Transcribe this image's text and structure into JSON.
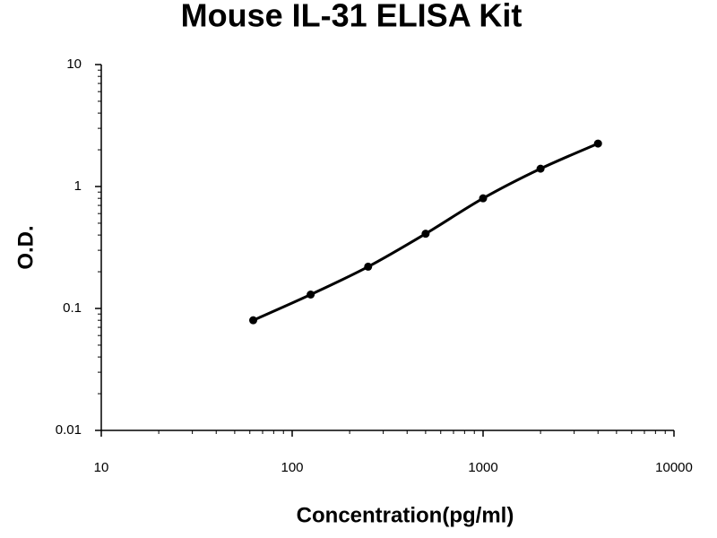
{
  "chart_data": {
    "type": "line",
    "title": "Mouse IL-31 ELISA Kit",
    "x_label": "Concentration(pg/ml)",
    "y_label": "O.D.",
    "x": [
      62.5,
      125,
      250,
      500,
      1000,
      2000,
      4000
    ],
    "series": [
      {
        "color": "#000000",
        "values": [
          0.08,
          0.13,
          0.22,
          0.41,
          0.8,
          1.4,
          2.25
        ]
      }
    ],
    "xlim": [
      10,
      10000
    ],
    "xticks": [
      10,
      100,
      1000,
      10000
    ],
    "ylim": [
      0.01,
      10
    ],
    "yticks": [
      0.01,
      0.1,
      1,
      10
    ],
    "x_log": true,
    "y_log": true,
    "grid": false
  }
}
